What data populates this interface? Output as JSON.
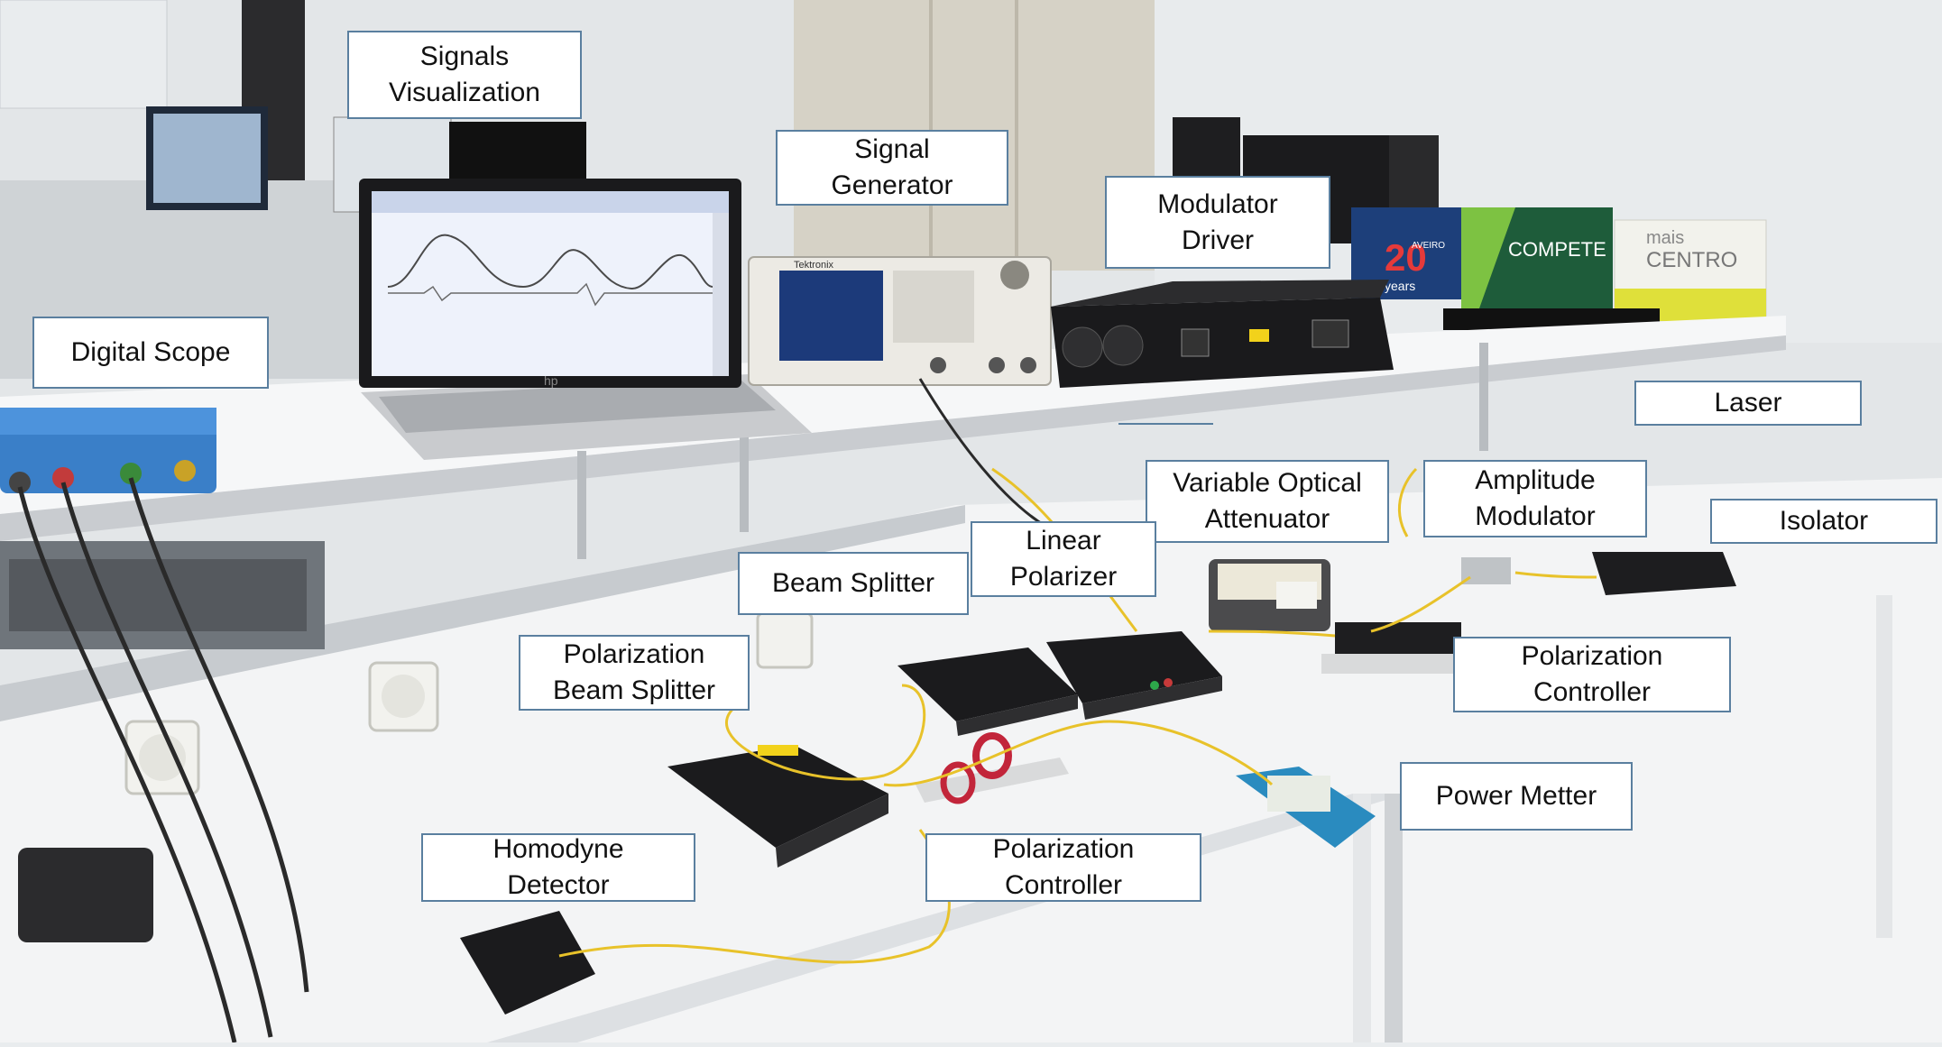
{
  "colors": {
    "wall": "#e3e6e8",
    "bench": "#f4f5f6",
    "callout_border": "#5a7f9f",
    "fiber": "#e8c22a",
    "device": "#1c1c1e",
    "scope_body": "#3a7fc8"
  },
  "screen": {
    "laptop_brand": "hp",
    "generator_brand": "Tektronix",
    "poster_it_years": "20",
    "poster_it_label": "years",
    "poster_it_city": "AVEIRO",
    "poster_compete": "COMPETE",
    "poster_mais_top": "mais",
    "poster_mais_bottom": "CENTRO"
  },
  "labels": {
    "signals_visualization": "Signals\nVisualization",
    "signal_generator": "Signal\nGenerator",
    "modulator_driver": "Modulator\nDriver",
    "digital_scope": "Digital Scope",
    "laser": "Laser",
    "variable_optical_attenuator": "Variable Optical\nAttenuator",
    "amplitude_modulator": "Amplitude\nModulator",
    "isolator": "Isolator",
    "linear_polarizer": "Linear\nPolarizer",
    "beam_splitter": "Beam Splitter",
    "polarization_controller_right": "Polarization\nController",
    "polarization_beam_splitter": "Polarization\nBeam Splitter",
    "power_metter": "Power Metter",
    "polarization_controller_center": "Polarization\nController",
    "homodyne_detector": "Homodyne\nDetector"
  }
}
